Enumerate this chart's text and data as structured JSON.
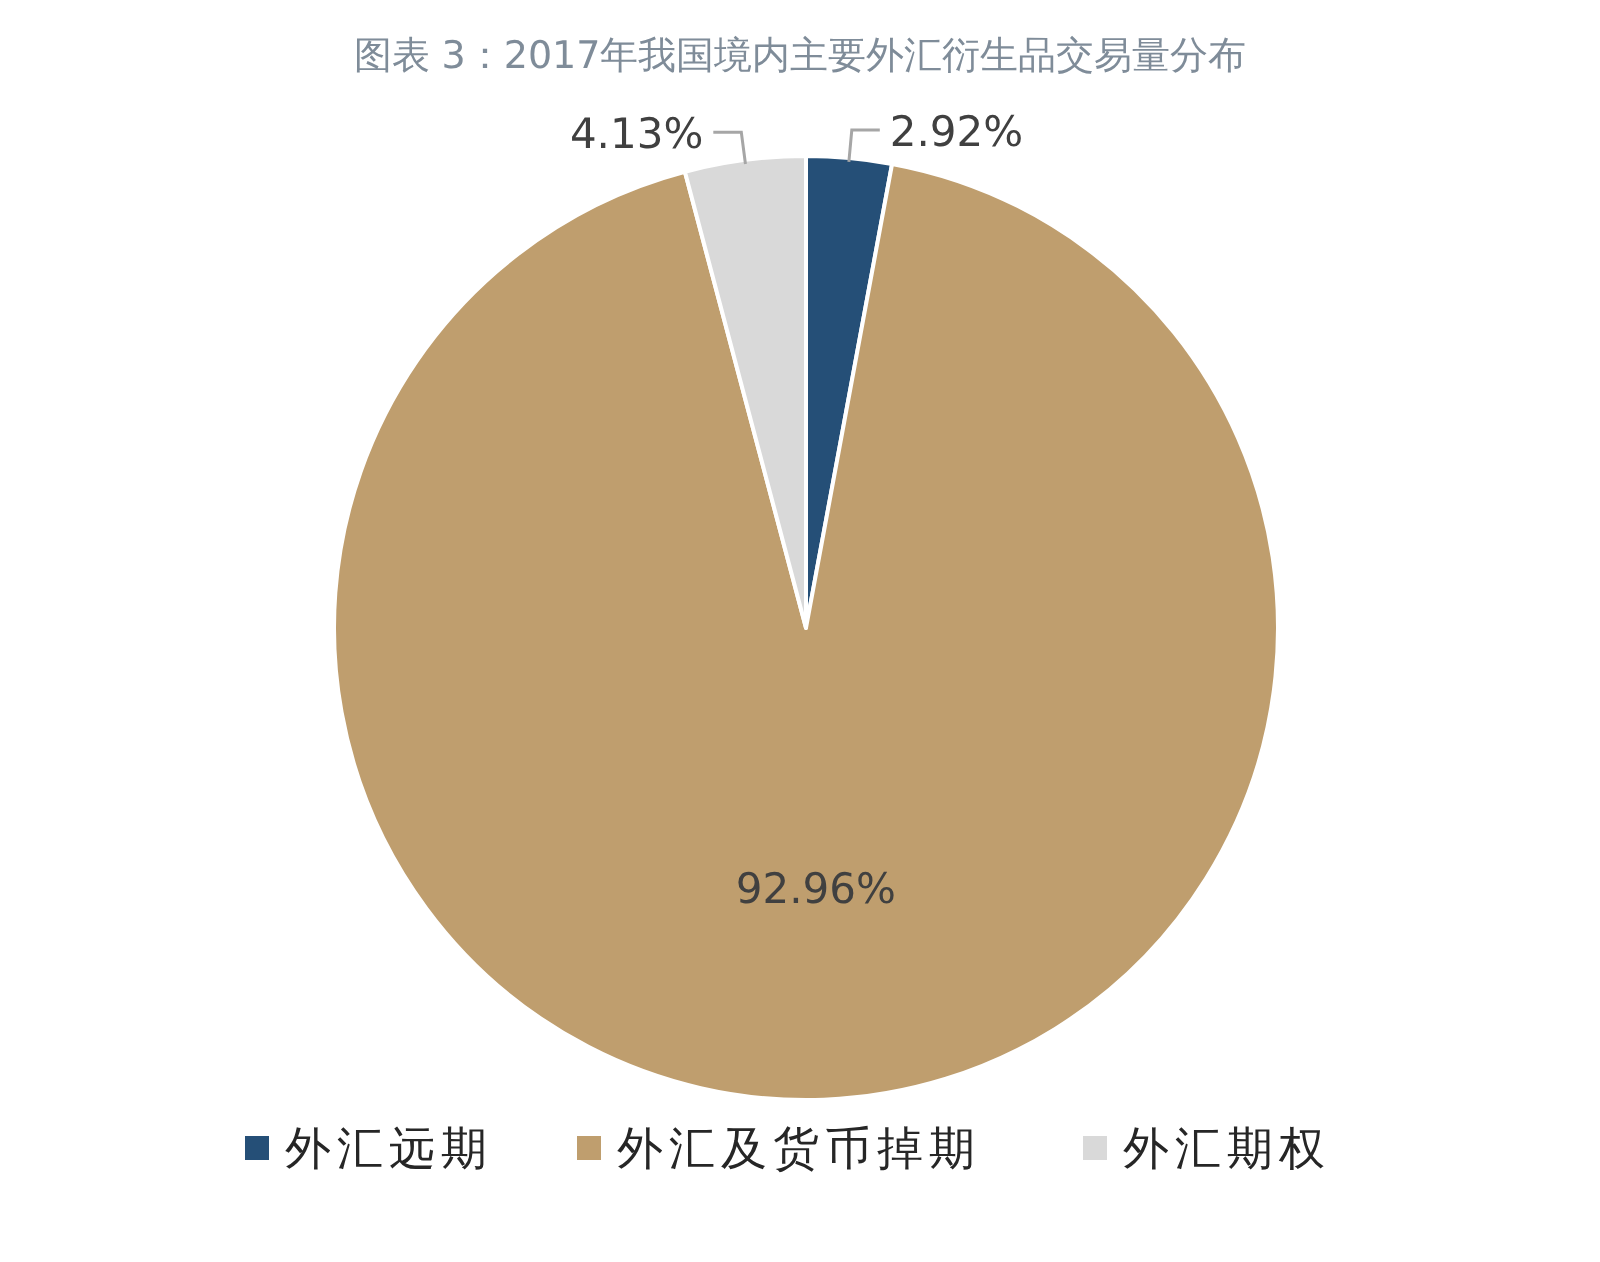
{
  "chart_data": {
    "type": "pie",
    "title": "图表 3：2017年我国境内主要外汇衍生品交易量分布",
    "categories": [
      "外汇远期",
      "外汇及货币掉期",
      "外汇期权"
    ],
    "values": [
      2.92,
      92.96,
      4.13
    ],
    "colors": [
      "#254f77",
      "#bf9e6e",
      "#d9d9d9"
    ],
    "value_labels": [
      "2.92%",
      "92.96%",
      "4.13%"
    ],
    "legend": "bottom"
  }
}
